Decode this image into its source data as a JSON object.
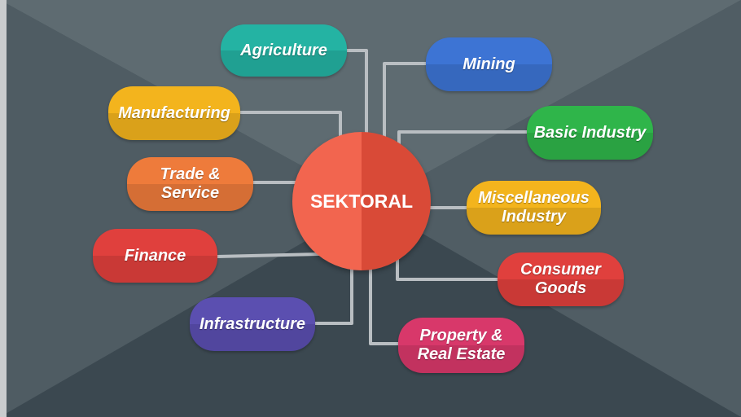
{
  "diagram": {
    "center_label": "SEKTORAL",
    "sectors": [
      {
        "key": "agriculture",
        "label_lines": [
          "Agriculture"
        ],
        "color": "#24b3a3"
      },
      {
        "key": "manufacturing",
        "label_lines": [
          "Manufacturing"
        ],
        "color": "#f3b41d"
      },
      {
        "key": "trade",
        "label_lines": [
          "Trade &",
          "Service"
        ],
        "color": "#ee7b3b"
      },
      {
        "key": "finance",
        "label_lines": [
          "Finance"
        ],
        "color": "#e0403d"
      },
      {
        "key": "infrastructure",
        "label_lines": [
          "Infrastructure"
        ],
        "color": "#5b4fb0"
      },
      {
        "key": "mining",
        "label_lines": [
          "Mining"
        ],
        "color": "#3d74d4"
      },
      {
        "key": "basic_industry",
        "label_lines": [
          "Basic Industry"
        ],
        "color": "#2fb54a"
      },
      {
        "key": "misc_industry",
        "label_lines": [
          "Miscellaneous",
          "Industry"
        ],
        "color": "#f3b41d"
      },
      {
        "key": "consumer_goods",
        "label_lines": [
          "Consumer",
          "Goods"
        ],
        "color": "#e0403d"
      },
      {
        "key": "property",
        "label_lines": [
          "Property &",
          "Real Estate"
        ],
        "color": "#d8386a"
      }
    ],
    "colors": {
      "background_dark": "#3d4a52",
      "background_light": "#5f6c72",
      "connector": "#b9bec2",
      "center_left": "#f2654f",
      "center_right": "#d94a37"
    }
  }
}
